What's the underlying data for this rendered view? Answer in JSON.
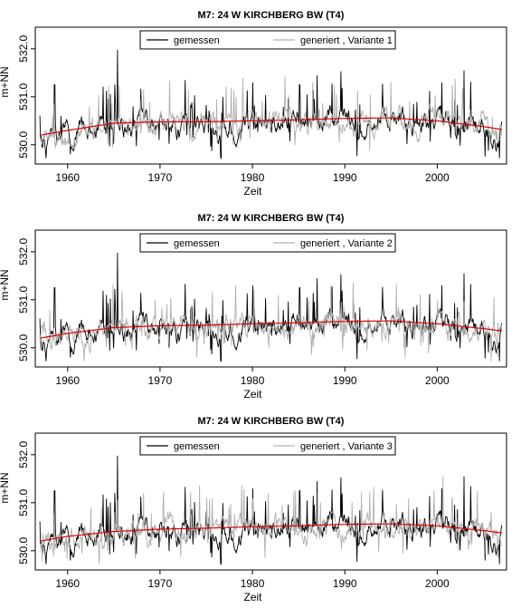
{
  "chart_data": [
    {
      "type": "line",
      "title": "M7: 24 W KIRCHBERG BW (T4)",
      "xlabel": "Zeit",
      "ylabel": "m+NN",
      "xlim": [
        1956.5,
        2007.5
      ],
      "ylim": [
        529.6,
        532.45
      ],
      "xticks": [
        "1960",
        "1970",
        "1980",
        "1990",
        "2000"
      ],
      "yticks": [
        "530.0",
        "531.0",
        "532.0"
      ],
      "legend_position": "top-center",
      "series": [
        {
          "name": "gemessen",
          "color": "#000000"
        },
        {
          "name": "generiert , Variante 1",
          "color": "#b0b0b0"
        },
        {
          "name": "",
          "color": "#e00000",
          "kind": "trend",
          "x": [
            1957,
            1960,
            1965,
            1970,
            1975,
            1980,
            1985,
            1990,
            1995,
            2000,
            2005,
            2007
          ],
          "y": [
            530.2,
            530.3,
            530.45,
            530.48,
            530.48,
            530.5,
            530.52,
            530.55,
            530.56,
            530.5,
            530.38,
            530.32
          ]
        }
      ]
    },
    {
      "type": "line",
      "title": "M7: 24 W KIRCHBERG BW (T4)",
      "xlabel": "Zeit",
      "ylabel": "m+NN",
      "xlim": [
        1956.5,
        2007.5
      ],
      "ylim": [
        529.6,
        532.45
      ],
      "xticks": [
        "1960",
        "1970",
        "1980",
        "1990",
        "2000"
      ],
      "yticks": [
        "530.0",
        "531.0",
        "532.0"
      ],
      "legend_position": "top-center",
      "series": [
        {
          "name": "gemessen",
          "color": "#000000"
        },
        {
          "name": "generiert , Variante 2",
          "color": "#b0b0b0"
        },
        {
          "name": "",
          "color": "#e00000",
          "kind": "trend",
          "x": [
            1957,
            1960,
            1965,
            1970,
            1975,
            1980,
            1985,
            1990,
            1995,
            2000,
            2005,
            2007
          ],
          "y": [
            530.2,
            530.3,
            530.42,
            530.46,
            530.47,
            530.5,
            530.52,
            530.55,
            530.56,
            530.5,
            530.4,
            530.35
          ]
        }
      ]
    },
    {
      "type": "line",
      "title": "M7: 24 W KIRCHBERG BW (T4)",
      "xlabel": "Zeit",
      "ylabel": "m+NN",
      "xlim": [
        1956.5,
        2007.5
      ],
      "ylim": [
        529.6,
        532.45
      ],
      "xticks": [
        "1960",
        "1970",
        "1980",
        "1990",
        "2000"
      ],
      "yticks": [
        "530.0",
        "531.0",
        "532.0"
      ],
      "legend_position": "top-center",
      "series": [
        {
          "name": "gemessen",
          "color": "#000000"
        },
        {
          "name": "generiert , Variante 3",
          "color": "#b0b0b0"
        },
        {
          "name": "",
          "color": "#e00000",
          "kind": "trend",
          "x": [
            1957,
            1960,
            1965,
            1970,
            1975,
            1980,
            1985,
            1990,
            1995,
            2000,
            2005,
            2007
          ],
          "y": [
            530.2,
            530.3,
            530.4,
            530.45,
            530.47,
            530.5,
            530.52,
            530.55,
            530.56,
            530.52,
            530.42,
            530.37
          ]
        }
      ]
    }
  ]
}
